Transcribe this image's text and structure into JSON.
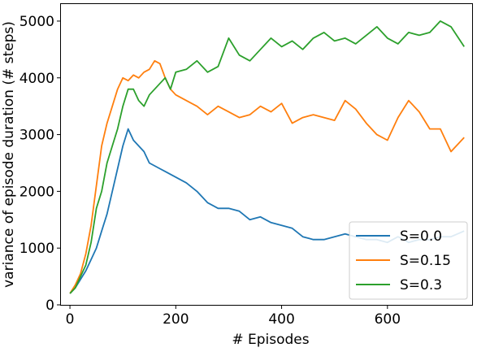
{
  "chart_data": {
    "type": "line",
    "xlabel": "# Episodes",
    "ylabel": "variance of episode duration (# steps)",
    "xlim": [
      -17,
      760
    ],
    "ylim": [
      0,
      5300
    ],
    "xticks": [
      0,
      200,
      400,
      600
    ],
    "yticks": [
      0,
      1000,
      2000,
      3000,
      4000,
      5000
    ],
    "grid": false,
    "legend_position": "lower-right",
    "series": [
      {
        "name": "S=0.0",
        "color": "#1f77b4",
        "x": [
          0,
          10,
          20,
          30,
          40,
          50,
          60,
          70,
          80,
          90,
          100,
          110,
          120,
          130,
          140,
          150,
          160,
          170,
          180,
          190,
          200,
          220,
          240,
          260,
          280,
          300,
          320,
          340,
          360,
          380,
          400,
          420,
          440,
          460,
          480,
          500,
          520,
          540,
          560,
          580,
          600,
          620,
          640,
          660,
          680,
          700,
          720,
          745
        ],
        "y": [
          200,
          300,
          450,
          600,
          800,
          1000,
          1300,
          1600,
          2000,
          2400,
          2800,
          3100,
          2900,
          2800,
          2700,
          2500,
          2450,
          2400,
          2350,
          2300,
          2250,
          2150,
          2000,
          1800,
          1700,
          1700,
          1650,
          1500,
          1550,
          1450,
          1400,
          1350,
          1200,
          1150,
          1150,
          1200,
          1250,
          1200,
          1150,
          1150,
          1100,
          1200,
          1100,
          1150,
          1150,
          1200,
          1200,
          1300
        ]
      },
      {
        "name": "S=0.15",
        "color": "#ff7f0e",
        "x": [
          0,
          10,
          20,
          30,
          40,
          50,
          60,
          70,
          80,
          90,
          100,
          110,
          120,
          130,
          140,
          150,
          160,
          170,
          180,
          190,
          200,
          220,
          240,
          260,
          280,
          300,
          320,
          340,
          360,
          380,
          400,
          420,
          440,
          460,
          480,
          500,
          520,
          540,
          560,
          580,
          600,
          620,
          640,
          660,
          680,
          700,
          720,
          745
        ],
        "y": [
          200,
          350,
          550,
          900,
          1400,
          2100,
          2800,
          3200,
          3500,
          3800,
          4000,
          3950,
          4050,
          4000,
          4100,
          4150,
          4300,
          4250,
          4000,
          3800,
          3700,
          3600,
          3500,
          3350,
          3500,
          3400,
          3300,
          3350,
          3500,
          3400,
          3550,
          3200,
          3300,
          3350,
          3300,
          3250,
          3600,
          3450,
          3200,
          3000,
          2900,
          3300,
          3600,
          3400,
          3100,
          3100,
          2700,
          2950
        ]
      },
      {
        "name": "S=0.3",
        "color": "#2ca02c",
        "x": [
          0,
          10,
          20,
          30,
          40,
          50,
          60,
          70,
          80,
          90,
          100,
          110,
          120,
          130,
          140,
          150,
          160,
          170,
          180,
          190,
          200,
          220,
          240,
          260,
          280,
          300,
          320,
          340,
          360,
          380,
          400,
          420,
          440,
          460,
          480,
          500,
          520,
          540,
          560,
          580,
          600,
          620,
          640,
          660,
          680,
          700,
          720,
          745
        ],
        "y": [
          200,
          300,
          500,
          700,
          1100,
          1700,
          2000,
          2500,
          2800,
          3100,
          3500,
          3800,
          3800,
          3600,
          3500,
          3700,
          3800,
          3900,
          4000,
          3800,
          4100,
          4150,
          4300,
          4100,
          4200,
          4700,
          4400,
          4300,
          4500,
          4700,
          4550,
          4650,
          4500,
          4700,
          4800,
          4650,
          4700,
          4600,
          4750,
          4900,
          4700,
          4600,
          4800,
          4750,
          4800,
          5000,
          4900,
          4550
        ]
      }
    ]
  }
}
